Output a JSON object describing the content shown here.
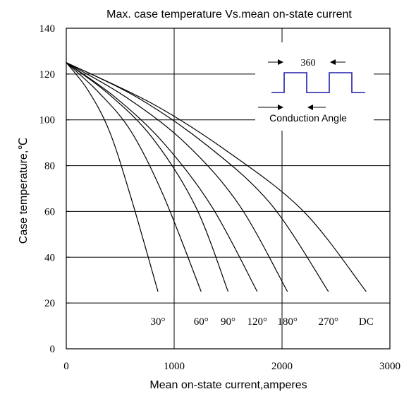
{
  "chart_data": {
    "type": "line",
    "title": "Max. case temperature  Vs.mean on-state current",
    "xlabel": "Mean on-state current,amperes",
    "ylabel": "Case temperature,℃",
    "xlim": [
      0,
      3000
    ],
    "ylim": [
      0,
      140
    ],
    "x_ticks": [
      "0",
      "1000",
      "2000",
      "3000"
    ],
    "y_ticks": [
      "0",
      "20",
      "40",
      "60",
      "80",
      "100",
      "120",
      "140"
    ],
    "grid": true,
    "series": [
      {
        "name": "30°",
        "x": [
          0,
          200,
          400,
          600,
          850
        ],
        "y": [
          125,
          113,
          95,
          66,
          25
        ]
      },
      {
        "name": "60°",
        "x": [
          0,
          300,
          600,
          900,
          1250
        ],
        "y": [
          125,
          112,
          95,
          67,
          25
        ]
      },
      {
        "name": "90°",
        "x": [
          0,
          400,
          800,
          1200,
          1500
        ],
        "y": [
          125,
          111,
          92,
          62,
          25
        ]
      },
      {
        "name": "120°",
        "x": [
          0,
          450,
          900,
          1350,
          1770
        ],
        "y": [
          125,
          110,
          90,
          62,
          25
        ]
      },
      {
        "name": "180°",
        "x": [
          0,
          550,
          1100,
          1600,
          2050
        ],
        "y": [
          125,
          110,
          90,
          63,
          25
        ]
      },
      {
        "name": "270°",
        "x": [
          0,
          650,
          1300,
          1900,
          2430
        ],
        "y": [
          125,
          110,
          89,
          63,
          25
        ]
      },
      {
        "name": "DC",
        "x": [
          0,
          800,
          1500,
          2200,
          2780
        ],
        "y": [
          125,
          107,
          86,
          60,
          25
        ]
      }
    ],
    "curve_labels": [
      "30°",
      "60°",
      "90°",
      "120°",
      "180°",
      "270°",
      "DC"
    ],
    "inset": {
      "angle_label": "360",
      "conduction_label": "Conduction  Angle",
      "waveform_color": "#1f1fa8"
    }
  }
}
